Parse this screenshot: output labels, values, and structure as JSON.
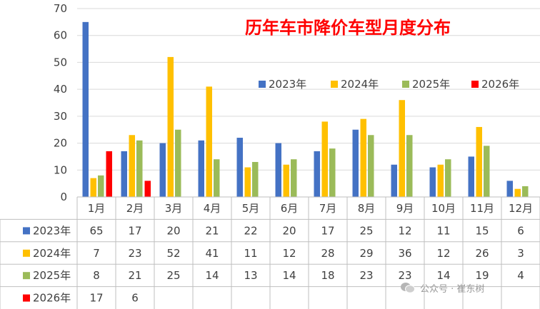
{
  "chart_data": {
    "type": "bar",
    "title": "历年车市降价车型月度分布",
    "categories": [
      "1月",
      "2月",
      "3月",
      "4月",
      "5月",
      "6月",
      "7月",
      "8月",
      "9月",
      "10月",
      "11月",
      "12月"
    ],
    "ylim": [
      0,
      70
    ],
    "yticks": [
      0,
      10,
      20,
      30,
      40,
      50,
      60,
      70
    ],
    "grid": true,
    "legend_position": "top-right",
    "data_table": true,
    "series": [
      {
        "name": "2023年",
        "color": "#4472c4",
        "values": [
          65,
          17,
          20,
          21,
          22,
          20,
          17,
          25,
          12,
          11,
          15,
          6
        ]
      },
      {
        "name": "2024年",
        "color": "#ffc000",
        "values": [
          7,
          23,
          52,
          41,
          11,
          12,
          28,
          29,
          36,
          12,
          26,
          3
        ]
      },
      {
        "name": "2025年",
        "color": "#9bbb59",
        "values": [
          8,
          21,
          25,
          14,
          13,
          14,
          18,
          23,
          23,
          14,
          19,
          4
        ]
      },
      {
        "name": "2026年",
        "color": "#ff0000",
        "values": [
          17,
          6,
          null,
          null,
          null,
          null,
          null,
          null,
          null,
          null,
          null,
          null
        ]
      }
    ]
  },
  "watermark": {
    "text": "公众号 · 崔东树",
    "icon": "wechat-icon"
  }
}
